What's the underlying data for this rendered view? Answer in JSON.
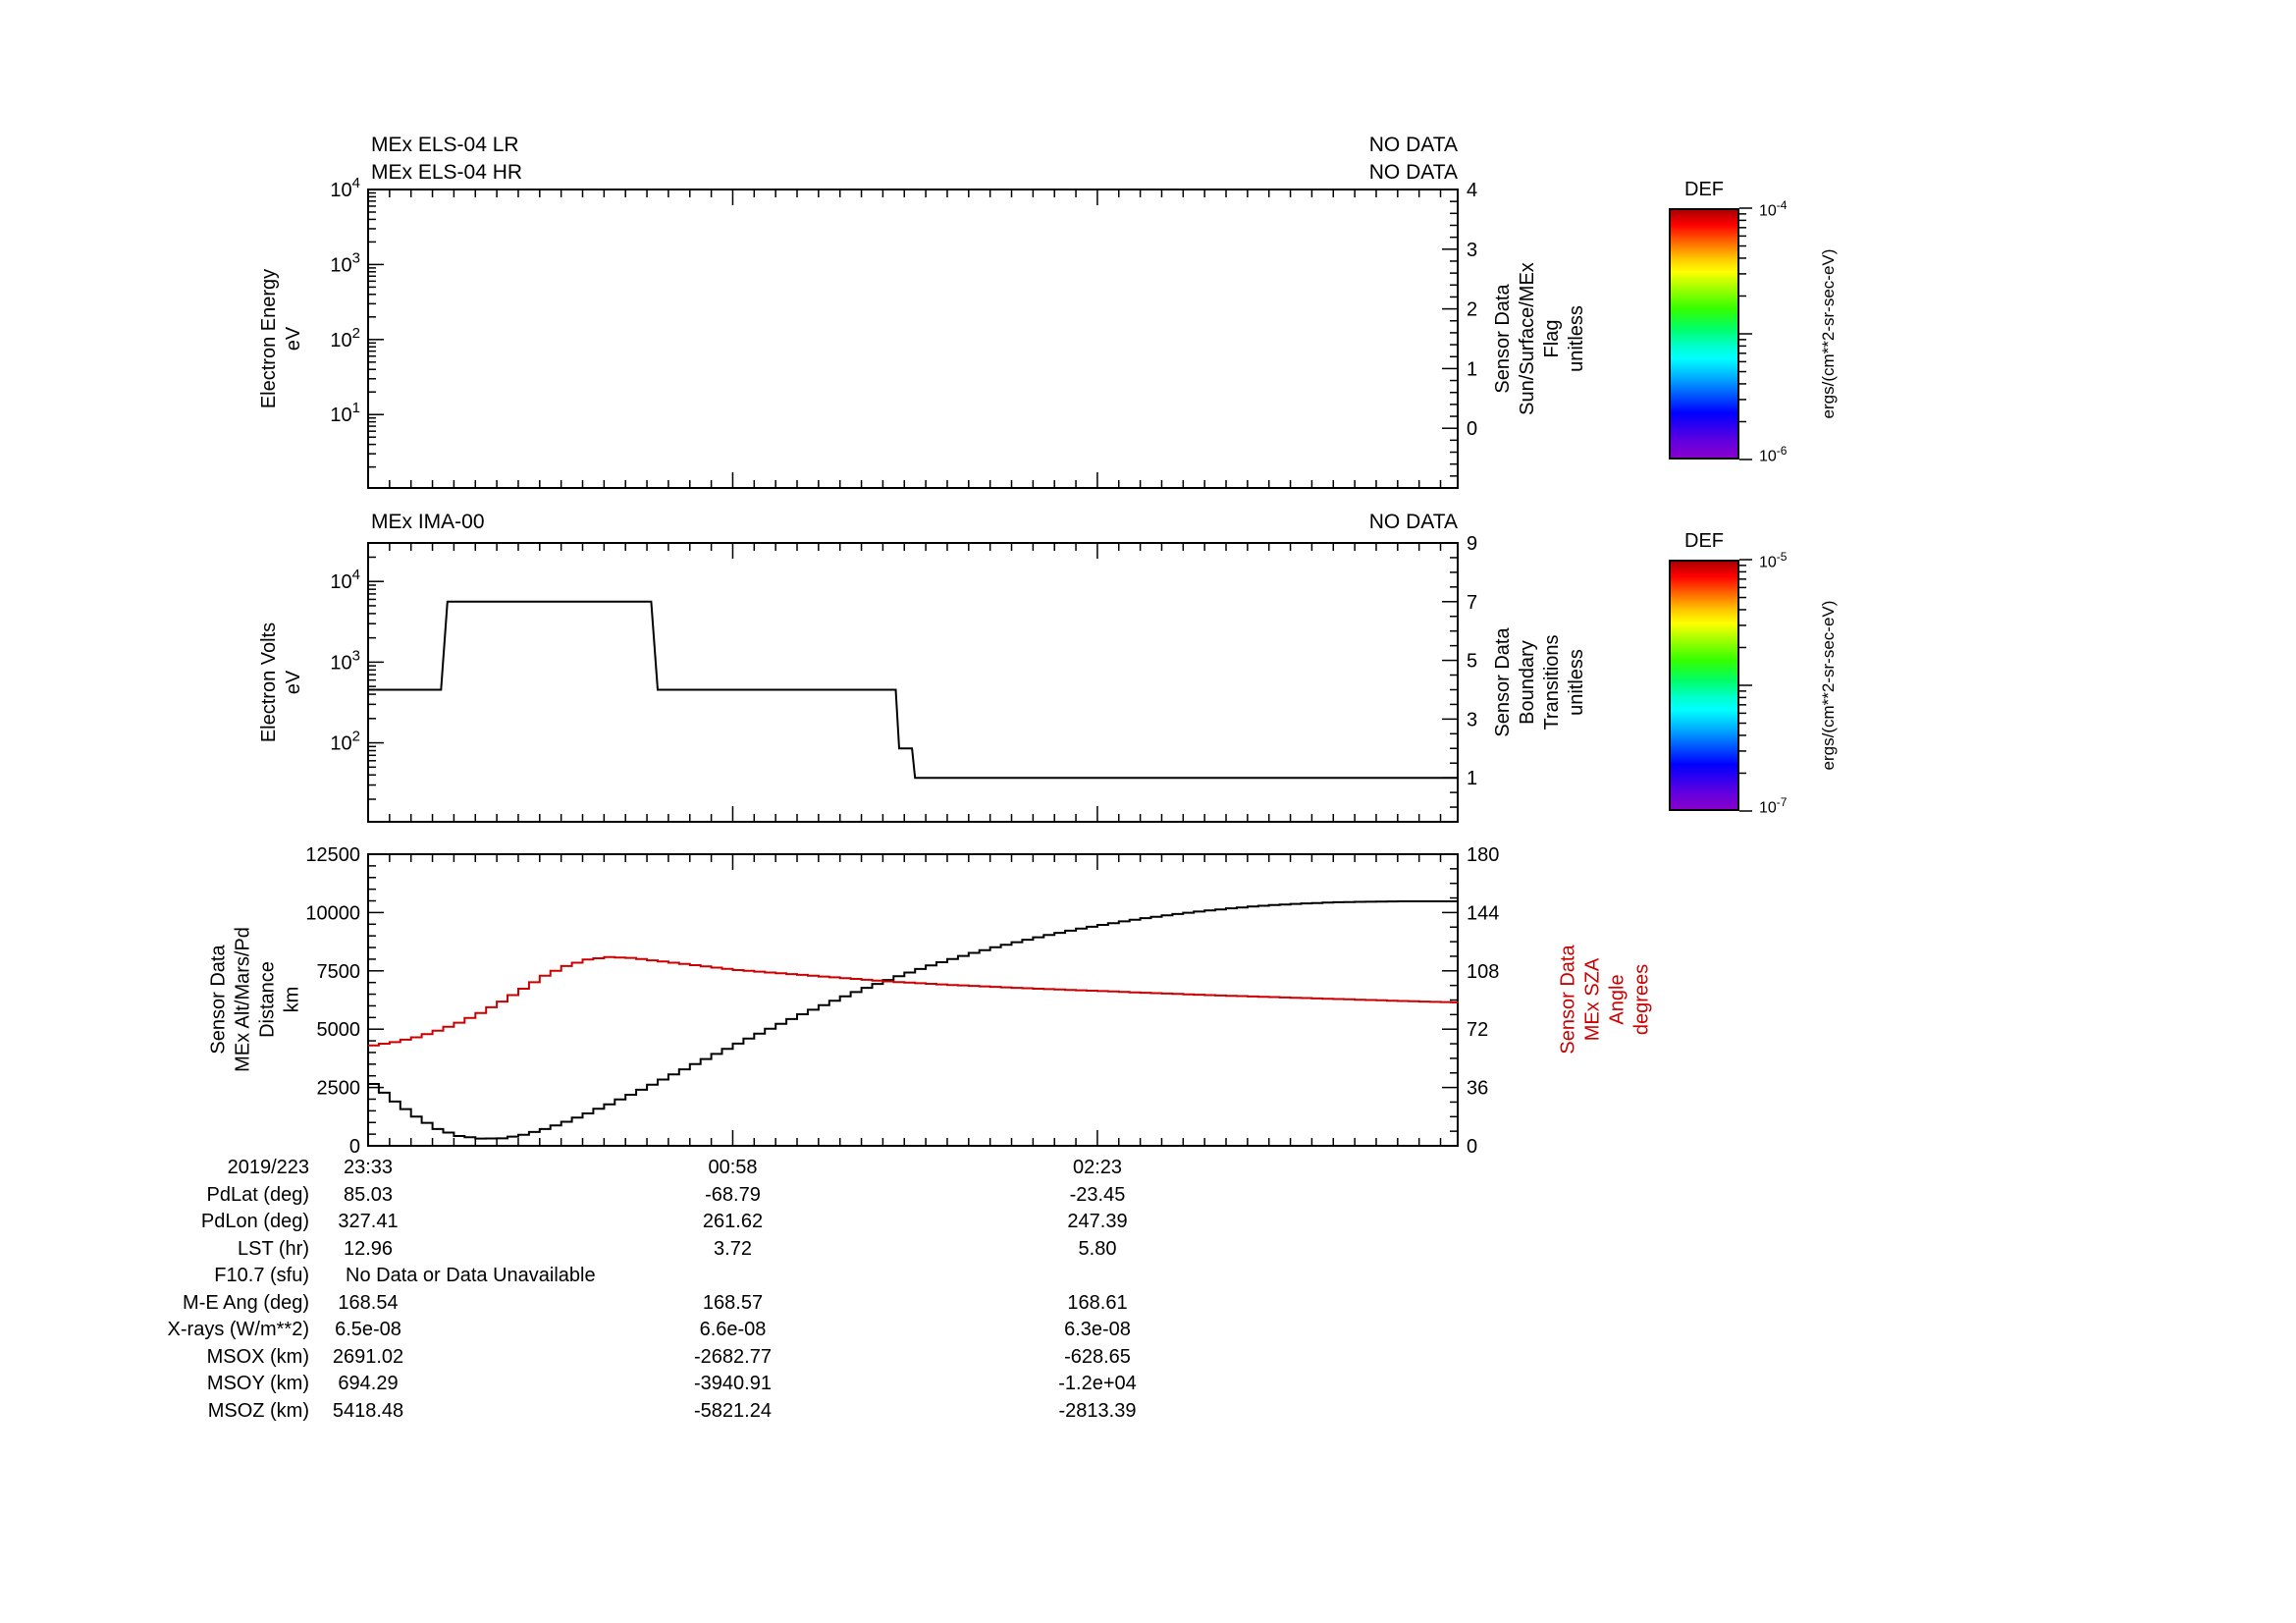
{
  "figure": {
    "background": "#ffffff",
    "foreground": "#000000",
    "red": "#cc0000"
  },
  "panels": {
    "els": {
      "title_lr": "MEx ELS-04 LR",
      "title_hr": "MEx ELS-04 HR",
      "no_data_lr": "NO DATA",
      "no_data_hr": "NO DATA",
      "ylabel": "Electron Energy\neV",
      "right_label": "Sensor Data\nSun/Surface/MEx\nFlag\nunitless"
    },
    "ima": {
      "title": "MEx IMA-00",
      "no_data": "NO DATA",
      "ylabel": "Electron Volts\neV",
      "right_label": "Sensor Data\nBoundary\nTransitions\nunitless"
    },
    "eph": {
      "left_label": "Sensor Data\nMEx Alt/Mars/Pd\nDistance\nkm",
      "right_label": "Sensor Data\nMEx SZA\nAngle\ndegrees"
    }
  },
  "colorbars": [
    {
      "title": "DEF",
      "top_base": "10",
      "top_exp": "-4",
      "bottom_base": "10",
      "bottom_exp": "-6",
      "unit": "ergs/(cm**2-sr-sec-eV)",
      "colors": [
        "#aa0000 0%",
        "#ff0000 6%",
        "#ff7700 14%",
        "#ffcc00 20%",
        "#ffff00 25%",
        "#aaff00 31%",
        "#33ff00 40%",
        "#00ff66 48%",
        "#00ffcc 55%",
        "#00ffff 60%",
        "#00aaff 68%",
        "#0055ff 75%",
        "#0000ff 82%",
        "#3300ee 88%",
        "#6600dd 94%",
        "#8800cc 100%"
      ]
    },
    {
      "title": "DEF",
      "top_base": "10",
      "top_exp": "-5",
      "bottom_base": "10",
      "bottom_exp": "-7",
      "unit": "ergs/(cm**2-sr-sec-eV)",
      "colors": [
        "#aa0000 0%",
        "#ff0000 6%",
        "#ff7700 14%",
        "#ffcc00 20%",
        "#ffff00 25%",
        "#aaff00 31%",
        "#33ff00 40%",
        "#00ff66 48%",
        "#00ffcc 55%",
        "#00ffff 60%",
        "#00aaff 68%",
        "#0055ff 75%",
        "#0000ff 82%",
        "#3300ee 88%",
        "#6600dd 94%",
        "#8800cc 100%"
      ]
    }
  ],
  "annotations": {
    "rows": [
      {
        "label": "2019/223",
        "values": [
          "23:33",
          "00:58",
          "02:23"
        ]
      },
      {
        "label": "PdLat (deg)",
        "values": [
          "85.03",
          "-68.79",
          "-23.45"
        ]
      },
      {
        "label": "PdLon (deg)",
        "values": [
          "327.41",
          "261.62",
          "247.39"
        ]
      },
      {
        "label": "LST (hr)",
        "values": [
          "12.96",
          "3.72",
          "5.80"
        ]
      },
      {
        "label": "F10.7 (sfu)",
        "full_value": "No Data or Data Unavailable"
      },
      {
        "label": "M-E Ang (deg)",
        "values": [
          "168.54",
          "168.57",
          "168.61"
        ]
      },
      {
        "label": "X-rays (W/m**2)",
        "values": [
          "6.5e-08",
          "6.6e-08",
          "6.3e-08"
        ]
      },
      {
        "label": "MSOX (km)",
        "values": [
          "2691.02",
          "-2682.77",
          "-628.65"
        ]
      },
      {
        "label": "MSOY (km)",
        "values": [
          "694.29",
          "-3940.91",
          "-1.2e+04"
        ]
      },
      {
        "label": "MSOZ (km)",
        "values": [
          "5418.48",
          "-5821.24",
          "-2813.39"
        ]
      }
    ]
  },
  "chart_data": {
    "type": "line",
    "description": "Three stacked time-series panels sharing one time axis",
    "x_axis": {
      "start_label": "2019/223 23:33",
      "min_minutes": 0,
      "max_minutes": 254,
      "major_tick_minutes": [
        0,
        85,
        170
      ],
      "major_tick_labels": [
        "23:33",
        "00:58",
        "02:23"
      ],
      "minor_tick_step_minutes": 5
    },
    "panels": [
      {
        "name": "els",
        "title": "MEx ELS-04 LR / MEx ELS-04 HR",
        "status": "NO DATA",
        "y_axis": {
          "scale": "log",
          "label": "Electron Energy (eV)",
          "lim": [
            1.05,
            10000
          ],
          "labeled_decades": [
            1,
            2,
            3,
            4
          ]
        },
        "right_axis": {
          "scale": "linear",
          "label": "Sensor Data Sun/Surface/MEx Flag (unitless)",
          "lim": [
            -1,
            4
          ],
          "major_ticks": [
            0,
            1,
            2,
            3,
            4
          ],
          "minor_step": 0.2
        },
        "series": []
      },
      {
        "name": "ima",
        "title": "MEx IMA-00",
        "status": "NO DATA",
        "y_axis": {
          "scale": "log",
          "label": "Electron Volts (eV)",
          "lim": [
            10.5,
            30000
          ],
          "labeled_decades": [
            2,
            3,
            4
          ]
        },
        "right_axis": {
          "scale": "linear",
          "label": "Sensor Data Boundary Transitions (unitless)",
          "lim": [
            -0.5,
            9
          ],
          "major_ticks": [
            1,
            3,
            5,
            7,
            9
          ],
          "minor_step": 0.5
        },
        "series": [
          {
            "name": "boundary-transitions",
            "axis": "right",
            "color": "#000000",
            "step": false,
            "points": [
              [
                0,
                4
              ],
              [
                17,
                4
              ],
              [
                18.5,
                7
              ],
              [
                66,
                7
              ],
              [
                67.5,
                4
              ],
              [
                123,
                4
              ],
              [
                123.8,
                2
              ],
              [
                126.8,
                2
              ],
              [
                127.5,
                1
              ],
              [
                254,
                1
              ]
            ]
          }
        ]
      },
      {
        "name": "ephemeris",
        "y_axis": {
          "scale": "linear",
          "label": "Sensor Data MEx Alt/Mars/Pd Distance (km)",
          "lim": [
            0,
            12500
          ],
          "major_ticks": [
            0,
            2500,
            5000,
            7500,
            10000,
            12500
          ],
          "minor_step": 500
        },
        "right_axis": {
          "scale": "linear",
          "label": "Sensor Data MEx SZA Angle (degrees)",
          "lim": [
            0,
            180
          ],
          "major_ticks": [
            0,
            36,
            72,
            108,
            144,
            180
          ],
          "minor_step": 9
        },
        "series": [
          {
            "name": "mex-altitude",
            "axis": "left",
            "color": "#000000",
            "step": true,
            "points": [
              [
                0,
                2650
              ],
              [
                5,
                1900
              ],
              [
                10,
                1250
              ],
              [
                15,
                720
              ],
              [
                20,
                420
              ],
              [
                25,
                310
              ],
              [
                30,
                320
              ],
              [
                35,
                470
              ],
              [
                40,
                720
              ],
              [
                45,
                1030
              ],
              [
                50,
                1390
              ],
              [
                55,
                1780
              ],
              [
                60,
                2190
              ],
              [
                65,
                2620
              ],
              [
                70,
                3060
              ],
              [
                75,
                3500
              ],
              [
                80,
                3940
              ],
              [
                85,
                4380
              ],
              [
                90,
                4810
              ],
              [
                95,
                5230
              ],
              [
                100,
                5640
              ],
              [
                105,
                6030
              ],
              [
                110,
                6410
              ],
              [
                115,
                6770
              ],
              [
                120,
                7110
              ],
              [
                125,
                7430
              ],
              [
                130,
                7730
              ],
              [
                135,
                8010
              ],
              [
                140,
                8270
              ],
              [
                145,
                8510
              ],
              [
                150,
                8730
              ],
              [
                155,
                8940
              ],
              [
                160,
                9130
              ],
              [
                165,
                9310
              ],
              [
                170,
                9470
              ],
              [
                175,
                9620
              ],
              [
                180,
                9760
              ],
              [
                185,
                9880
              ],
              [
                190,
                9990
              ],
              [
                195,
                10090
              ],
              [
                200,
                10180
              ],
              [
                205,
                10260
              ],
              [
                210,
                10320
              ],
              [
                215,
                10370
              ],
              [
                220,
                10410
              ],
              [
                225,
                10440
              ],
              [
                230,
                10460
              ],
              [
                235,
                10470
              ],
              [
                240,
                10478
              ],
              [
                245,
                10480
              ],
              [
                250,
                10480
              ],
              [
                254,
                10480
              ]
            ]
          },
          {
            "name": "mex-sza",
            "axis": "right",
            "color": "#cc0000",
            "step": true,
            "points": [
              [
                0,
                62
              ],
              [
                5,
                64
              ],
              [
                10,
                67
              ],
              [
                15,
                71
              ],
              [
                20,
                76
              ],
              [
                25,
                82
              ],
              [
                30,
                89
              ],
              [
                35,
                97
              ],
              [
                40,
                105
              ],
              [
                45,
                111
              ],
              [
                50,
                115
              ],
              [
                55,
                116.5
              ],
              [
                60,
                116
              ],
              [
                65,
                114.5
              ],
              [
                70,
                113
              ],
              [
                75,
                111.5
              ],
              [
                80,
                110
              ],
              [
                85,
                108.5
              ],
              [
                90,
                107.5
              ],
              [
                95,
                106.5
              ],
              [
                100,
                105.5
              ],
              [
                105,
                104.5
              ],
              [
                110,
                103.5
              ],
              [
                115,
                102.5
              ],
              [
                120,
                101.5
              ],
              [
                125,
                100.7
              ],
              [
                130,
                100
              ],
              [
                135,
                99.3
              ],
              [
                140,
                98.7
              ],
              [
                145,
                98.1
              ],
              [
                150,
                97.5
              ],
              [
                155,
                97
              ],
              [
                160,
                96.5
              ],
              [
                165,
                96
              ],
              [
                170,
                95.5
              ],
              [
                175,
                95
              ],
              [
                180,
                94.5
              ],
              [
                185,
                94
              ],
              [
                190,
                93.5
              ],
              [
                195,
                93
              ],
              [
                200,
                92.6
              ],
              [
                205,
                92.2
              ],
              [
                210,
                91.8
              ],
              [
                215,
                91.4
              ],
              [
                220,
                91
              ],
              [
                225,
                90.6
              ],
              [
                230,
                90.2
              ],
              [
                235,
                89.8
              ],
              [
                240,
                89.4
              ],
              [
                245,
                89
              ],
              [
                250,
                88.7
              ],
              [
                254,
                88.5
              ]
            ]
          }
        ]
      }
    ]
  }
}
